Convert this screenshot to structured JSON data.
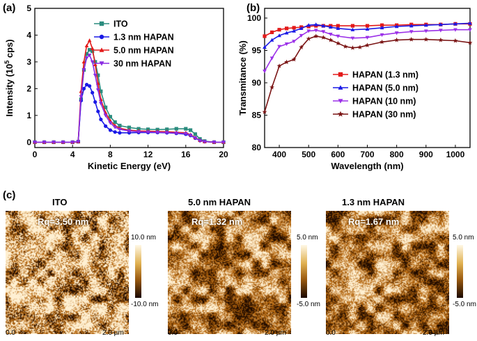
{
  "panel_labels": {
    "a": "(a)",
    "b": "(b)",
    "c": "(c)"
  },
  "chart_data": [
    {
      "type": "line",
      "panel": "(a)",
      "title": "",
      "xlabel": "Kinetic Energy (eV)",
      "ylabel_parts": [
        "Intensity (10",
        "5",
        " cps)"
      ],
      "xlim": [
        0,
        20
      ],
      "ylim": [
        -0.2,
        5
      ],
      "xticks": [
        0,
        4,
        8,
        12,
        16,
        20
      ],
      "yticks": [
        0,
        1,
        2,
        3,
        4,
        5
      ],
      "legend_position": "top-right",
      "series": [
        {
          "name": "ITO",
          "color": "#2b8c7e",
          "marker": "square",
          "x": [
            0,
            1,
            2,
            3,
            4,
            4.6,
            4.9,
            5.2,
            5.5,
            5.8,
            6.1,
            6.4,
            6.7,
            7.0,
            7.5,
            8.0,
            8.5,
            9.0,
            10,
            11,
            12,
            13,
            14,
            15,
            16,
            16.5,
            17,
            17.5,
            18,
            19,
            20
          ],
          "y": [
            0,
            0,
            0,
            0,
            0,
            0.02,
            1.6,
            2.7,
            3.3,
            3.45,
            3.4,
            3.0,
            2.5,
            1.9,
            1.3,
            0.95,
            0.75,
            0.62,
            0.55,
            0.5,
            0.48,
            0.47,
            0.48,
            0.5,
            0.5,
            0.45,
            0.3,
            0.12,
            0.04,
            0,
            0
          ]
        },
        {
          "name": "1.3 nm HAPAN",
          "color": "#1a1ae6",
          "marker": "circle",
          "x": [
            0,
            1,
            2,
            3,
            4,
            4.6,
            4.9,
            5.2,
            5.5,
            5.8,
            6.1,
            6.4,
            6.7,
            7.0,
            7.5,
            8.0,
            8.5,
            9.0,
            10,
            11,
            12,
            13,
            14,
            15,
            16,
            16.5,
            17,
            17.5,
            18,
            19,
            20
          ],
          "y": [
            0,
            0,
            0,
            0,
            0,
            0.02,
            1.55,
            2.0,
            2.15,
            2.1,
            1.85,
            1.5,
            1.15,
            0.85,
            0.6,
            0.45,
            0.38,
            0.35,
            0.35,
            0.36,
            0.36,
            0.36,
            0.35,
            0.33,
            0.3,
            0.25,
            0.15,
            0.06,
            0.02,
            0,
            0
          ]
        },
        {
          "name": "5.0 nm HAPAN",
          "color": "#e31a1a",
          "marker": "triangle-up",
          "x": [
            0,
            1,
            2,
            3,
            4,
            4.6,
            4.9,
            5.2,
            5.5,
            5.8,
            6.1,
            6.4,
            6.7,
            7.0,
            7.5,
            8.0,
            8.5,
            9.0,
            10,
            11,
            12,
            13,
            14,
            15,
            16,
            16.5,
            17,
            17.5,
            18,
            19,
            20
          ],
          "y": [
            0,
            0,
            0,
            0,
            0,
            0.02,
            1.9,
            3.0,
            3.6,
            3.8,
            3.5,
            2.9,
            2.2,
            1.6,
            1.1,
            0.8,
            0.62,
            0.52,
            0.45,
            0.42,
            0.41,
            0.4,
            0.39,
            0.37,
            0.35,
            0.28,
            0.17,
            0.07,
            0.02,
            0,
            0
          ]
        },
        {
          "name": "30 nm HAPAN",
          "color": "#8a2be2",
          "marker": "triangle-down",
          "x": [
            0,
            1,
            2,
            3,
            4,
            4.6,
            4.9,
            5.2,
            5.5,
            5.8,
            6.1,
            6.4,
            6.7,
            7.0,
            7.5,
            8.0,
            8.5,
            9.0,
            10,
            11,
            12,
            13,
            14,
            15,
            16,
            16.5,
            17,
            17.5,
            18,
            19,
            20
          ],
          "y": [
            0,
            0,
            0,
            0,
            0,
            0.02,
            1.7,
            2.7,
            3.15,
            3.25,
            3.0,
            2.5,
            1.95,
            1.45,
            1.0,
            0.72,
            0.56,
            0.48,
            0.42,
            0.39,
            0.38,
            0.37,
            0.36,
            0.34,
            0.32,
            0.26,
            0.16,
            0.06,
            0.02,
            0,
            0
          ]
        }
      ]
    },
    {
      "type": "line",
      "panel": "(b)",
      "title": "",
      "xlabel": "Wavelength (nm)",
      "ylabel": "Transmitance (%)",
      "xlim": [
        350,
        1050
      ],
      "ylim": [
        80,
        101.5
      ],
      "xticks": [
        400,
        500,
        600,
        700,
        800,
        900,
        1000
      ],
      "yticks": [
        80,
        85,
        90,
        95,
        100
      ],
      "legend_position": "lower-right",
      "series": [
        {
          "name": "HAPAN (1.3 nm)",
          "color": "#e31a1a",
          "marker": "square",
          "x": [
            350,
            375,
            400,
            425,
            450,
            475,
            500,
            525,
            550,
            575,
            600,
            650,
            700,
            750,
            800,
            850,
            900,
            950,
            1000,
            1050
          ],
          "y": [
            97.2,
            97.8,
            98.2,
            98.4,
            98.5,
            98.6,
            98.7,
            98.8,
            98.8,
            98.8,
            98.8,
            98.8,
            98.8,
            98.9,
            98.9,
            99.0,
            99.0,
            99.0,
            99.1,
            99.1
          ]
        },
        {
          "name": "HAPAN (5.0 nm)",
          "color": "#1a1ae6",
          "marker": "triangle-up",
          "x": [
            350,
            375,
            400,
            425,
            450,
            475,
            500,
            525,
            550,
            575,
            600,
            650,
            700,
            750,
            800,
            850,
            900,
            950,
            1000,
            1050
          ],
          "y": [
            95.5,
            96.6,
            97.3,
            97.7,
            98.0,
            98.4,
            98.9,
            99.0,
            98.8,
            98.6,
            98.4,
            98.2,
            98.3,
            98.5,
            98.7,
            98.8,
            98.9,
            99.0,
            99.1,
            99.2
          ]
        },
        {
          "name": "HAPAN (10 nm)",
          "color": "#9b30e8",
          "marker": "triangle-down",
          "x": [
            350,
            375,
            400,
            425,
            450,
            475,
            500,
            525,
            550,
            575,
            600,
            650,
            700,
            750,
            800,
            850,
            900,
            950,
            1000,
            1050
          ],
          "y": [
            91.8,
            93.8,
            95.6,
            96.0,
            96.4,
            97.3,
            98.0,
            98.1,
            97.9,
            97.5,
            97.2,
            96.9,
            97.0,
            97.4,
            97.7,
            97.9,
            98.0,
            98.1,
            98.2,
            98.2
          ]
        },
        {
          "name": "HAPAN (30 nm)",
          "color": "#7a1414",
          "marker": "star",
          "x": [
            350,
            375,
            400,
            425,
            450,
            475,
            500,
            525,
            550,
            575,
            600,
            625,
            650,
            675,
            700,
            750,
            800,
            850,
            900,
            950,
            1000,
            1050
          ],
          "y": [
            85.5,
            89.3,
            92.6,
            93.2,
            93.6,
            95.5,
            96.8,
            97.2,
            97.0,
            96.6,
            96.1,
            95.6,
            95.4,
            95.5,
            95.8,
            96.3,
            96.6,
            96.7,
            96.7,
            96.6,
            96.5,
            96.2
          ]
        }
      ]
    }
  ],
  "afm_panels": [
    {
      "title": "ITO",
      "rq": "Rq=3.50 nm",
      "cbar_top": "10.0 nm",
      "cbar_bottom": "-10.0 nm",
      "x0": "0.0",
      "x1": "2.0 µm"
    },
    {
      "title": "5.0 nm HAPAN",
      "rq": "Rq=1.32 nm",
      "cbar_top": "5.0 nm",
      "cbar_bottom": "-5.0 nm",
      "x0": "0.0",
      "x1": "2.0 µm"
    },
    {
      "title": "1.3 nm HAPAN",
      "rq": "Rq=1.67 nm",
      "cbar_top": "5.0 nm",
      "cbar_bottom": "-5.0 nm",
      "x0": "0.0",
      "x1": "2.0 µm"
    }
  ]
}
